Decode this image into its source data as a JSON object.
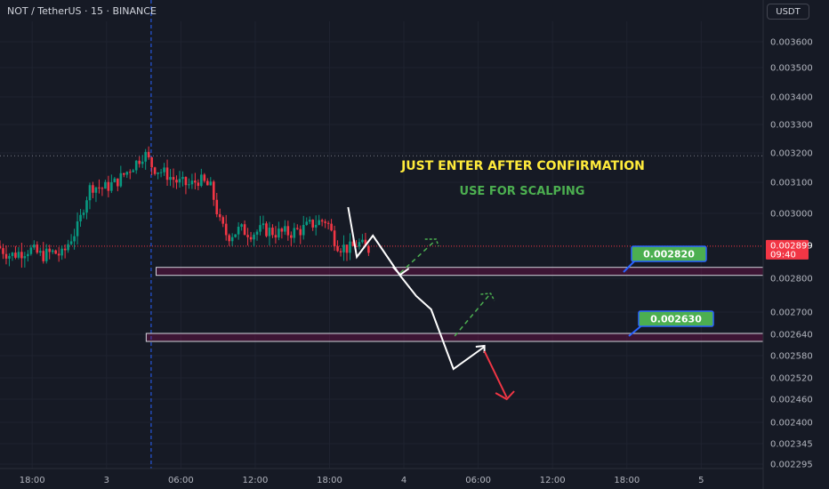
{
  "header": {
    "symbol": "NOT / TetherUS · 15 · BINANCE",
    "currency": "USDT"
  },
  "chart_data": {
    "type": "candlestick",
    "price_axis": {
      "range": [
        0.00229,
        0.00372
      ],
      "ticks": [
        "0.003600",
        "0.003500",
        "0.003400",
        "0.003300",
        "0.003200",
        "0.003100",
        "0.003000",
        "0.002800",
        "0.002700",
        "0.002640",
        "0.002580",
        "0.002520",
        "0.002460",
        "0.002400",
        "0.002345",
        "0.002295"
      ],
      "tick_values": [
        0.0036,
        0.0035,
        0.0034,
        0.0033,
        0.0032,
        0.0031,
        0.003,
        0.0028,
        0.0027,
        0.00264,
        0.00258,
        0.00252,
        0.00246,
        0.0024,
        0.002345,
        0.002295
      ]
    },
    "time_axis": {
      "ticks": [
        "18:00",
        "3",
        "06:00",
        "12:00",
        "18:00",
        "4",
        "06:00",
        "12:00",
        "18:00",
        "5"
      ],
      "tick_hours": [
        -6,
        0,
        6,
        12,
        18,
        24,
        30,
        36,
        42,
        48
      ],
      "range_hours": [
        -8.6,
        53
      ]
    },
    "current_price": {
      "label": "0.002899",
      "countdown": "09:40",
      "value": 0.002899,
      "color": "#f23645"
    },
    "annotations": {
      "confirm_text": "JUST ENTER AFTER CONFIRMATION",
      "confirm_color": "#ffeb3b",
      "scalp_text": "USE FOR SCALPING",
      "scalp_color": "#4caf50"
    },
    "levels": [
      {
        "label": "0.002820",
        "value": 0.00282,
        "start_hour": 4,
        "color": "#4caf50"
      },
      {
        "label": "0.002630",
        "value": 0.00263,
        "start_hour": 3.2,
        "color": "#4caf50"
      }
    ],
    "prior_high_value": 0.00319,
    "candle_data": [
      [
        -8.6,
        0.0029
      ],
      [
        -7.5,
        0.00287
      ],
      [
        -6,
        0.00289
      ],
      [
        -5,
        0.00287
      ],
      [
        -4,
        0.00288
      ],
      [
        -3.3,
        0.00287
      ],
      [
        -2.7,
        0.00292
      ],
      [
        -2,
        0.00296
      ],
      [
        -1.5,
        0.00304
      ],
      [
        -1,
        0.00309
      ],
      [
        0,
        0.00308
      ],
      [
        1,
        0.0031
      ],
      [
        2,
        0.00314
      ],
      [
        2.7,
        0.00317
      ],
      [
        3.3,
        0.0032
      ],
      [
        4,
        0.00315
      ],
      [
        5,
        0.00313
      ],
      [
        6,
        0.0031
      ],
      [
        7,
        0.00309
      ],
      [
        7.7,
        0.00311
      ],
      [
        8.7,
        0.00308
      ],
      [
        9.4,
        0.00297
      ],
      [
        10,
        0.00293
      ],
      [
        11,
        0.00295
      ],
      [
        12,
        0.00294
      ],
      [
        13,
        0.00295
      ],
      [
        14,
        0.00294
      ],
      [
        15,
        0.00294
      ],
      [
        16,
        0.00295
      ],
      [
        17,
        0.00297
      ],
      [
        18,
        0.00298
      ],
      [
        18.5,
        0.00293
      ],
      [
        19,
        0.0029
      ],
      [
        20,
        0.00289
      ],
      [
        20.5,
        0.00291
      ],
      [
        21.2,
        0.00289
      ]
    ]
  }
}
